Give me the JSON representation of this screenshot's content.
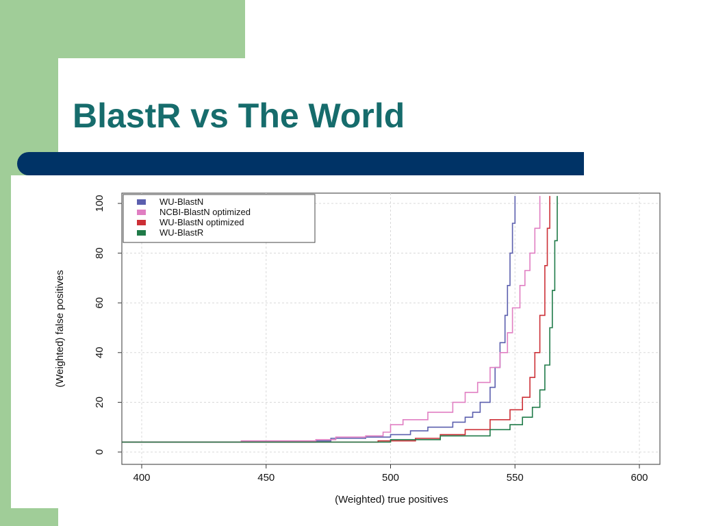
{
  "slide": {
    "title": "BlastR vs The World",
    "colors": {
      "green": "#a0cd98",
      "navy": "#003366",
      "title": "#166c6c"
    }
  },
  "chart_data": {
    "type": "line",
    "title": "",
    "xlabel": "(Weighted) true positives",
    "ylabel": "(Weighted) false positives",
    "xlim": [
      392,
      600
    ],
    "ylim": [
      0,
      103
    ],
    "xticks": [
      400,
      450,
      500,
      550,
      600
    ],
    "yticks": [
      0,
      20,
      40,
      60,
      80,
      100
    ],
    "grid": true,
    "legend_position": "top-left",
    "series": [
      {
        "name": "WU-BlastN",
        "color": "#5b5fae",
        "x": [
          392,
          430,
          470,
          476,
          490,
          500,
          508,
          515,
          525,
          530,
          533,
          536,
          540,
          542,
          544,
          546,
          547,
          548,
          549,
          550
        ],
        "y": [
          4,
          4,
          4.5,
          5.5,
          6,
          7,
          8.5,
          10,
          12,
          14,
          16,
          20,
          26,
          34,
          44,
          55,
          67,
          80,
          92,
          103
        ]
      },
      {
        "name": "NCBI-BlastN optimized",
        "color": "#e07ec2",
        "x": [
          392,
          440,
          470,
          478,
          490,
          497,
          500,
          505,
          515,
          525,
          530,
          535,
          540,
          544,
          547,
          549,
          552,
          554,
          556,
          558,
          560
        ],
        "y": [
          4,
          4.5,
          5,
          6,
          6.5,
          8,
          11,
          13,
          16,
          20,
          24,
          28,
          34,
          40,
          48,
          58,
          67,
          73,
          80,
          90,
          103
        ]
      },
      {
        "name": "WU-BlastN optimized",
        "color": "#cc2f36",
        "x": [
          392,
          470,
          495,
          510,
          520,
          530,
          540,
          548,
          553,
          556,
          558,
          560,
          562,
          563,
          564
        ],
        "y": [
          4,
          4,
          4.5,
          5.5,
          7,
          9,
          13,
          17,
          22,
          30,
          40,
          55,
          75,
          90,
          103
        ]
      },
      {
        "name": "WU-BlastR",
        "color": "#1f7a48",
        "x": [
          392,
          470,
          500,
          520,
          540,
          548,
          553,
          557,
          560,
          562,
          564,
          565,
          566,
          567
        ],
        "y": [
          4,
          4,
          5,
          6.5,
          9,
          11,
          14,
          18,
          25,
          35,
          50,
          65,
          85,
          103
        ]
      }
    ]
  }
}
